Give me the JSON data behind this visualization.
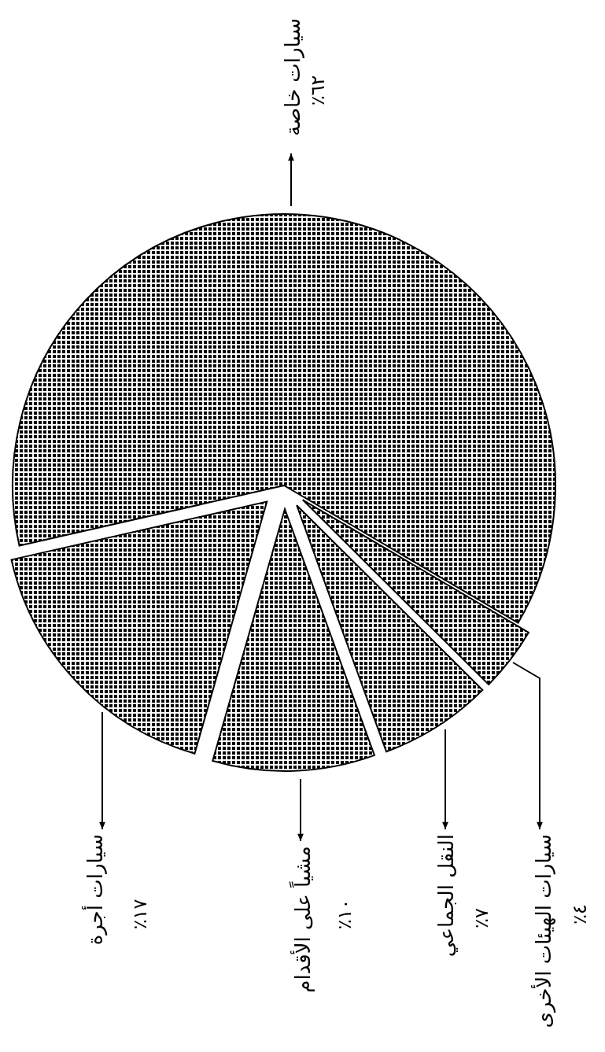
{
  "chart_data": {
    "type": "pie",
    "categories": [
      "سيارات خاصة",
      "سيارات الهيئات الأخرى",
      "النقل الجماعي",
      "مشياً على الأقدام",
      "سيارات أجرة"
    ],
    "values": [
      62,
      4,
      7,
      10,
      17
    ],
    "value_labels": [
      "٪٦٢",
      "٪٤",
      "٪٧",
      "٪١٠",
      "٪١٧"
    ],
    "colors": [
      "#000000",
      "#000000",
      "#000000",
      "#000000",
      "#000000"
    ]
  }
}
